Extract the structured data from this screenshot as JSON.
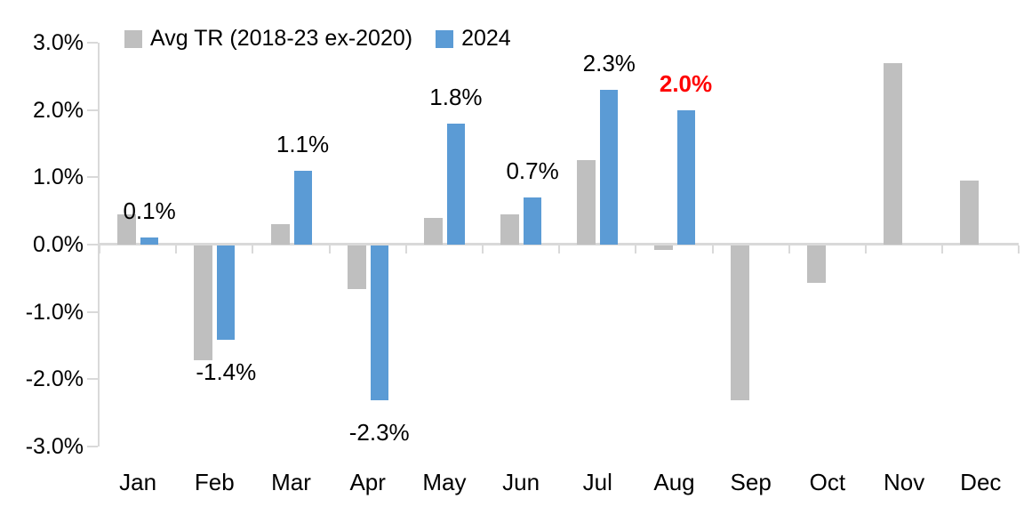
{
  "legend": {
    "series1_label": "Avg TR (2018-23 ex-2020)",
    "series2_label": "2024"
  },
  "colors": {
    "avg_series": "#BFBFBF",
    "cur_series": "#5B9BD5",
    "axis": "#D9D9D9",
    "label_default": "#000000",
    "label_highlight": "#FF0000"
  },
  "chart_data": {
    "type": "bar",
    "categories": [
      "Jan",
      "Feb",
      "Mar",
      "Apr",
      "May",
      "Jun",
      "Jul",
      "Aug",
      "Sep",
      "Oct",
      "Nov",
      "Dec"
    ],
    "series": [
      {
        "name": "Avg TR (2018-23 ex-2020)",
        "color_key": "avg_series",
        "values": [
          0.45,
          -1.7,
          0.3,
          -0.65,
          0.4,
          0.45,
          1.25,
          -0.07,
          -2.3,
          -0.55,
          2.7,
          0.95
        ]
      },
      {
        "name": "2024",
        "color_key": "cur_series",
        "values": [
          0.1,
          -1.4,
          1.1,
          -2.3,
          1.8,
          0.7,
          2.3,
          2.0,
          null,
          null,
          null,
          null
        ]
      }
    ],
    "data_labels": [
      {
        "category": "Jan",
        "text": "0.1%",
        "value": 0.1,
        "highlight": false
      },
      {
        "category": "Feb",
        "text": "-1.4%",
        "value": -1.4,
        "highlight": false
      },
      {
        "category": "Mar",
        "text": "1.1%",
        "value": 1.1,
        "highlight": false
      },
      {
        "category": "Apr",
        "text": "-2.3%",
        "value": -2.3,
        "highlight": false
      },
      {
        "category": "May",
        "text": "1.8%",
        "value": 1.8,
        "highlight": false
      },
      {
        "category": "Jun",
        "text": "0.7%",
        "value": 0.7,
        "highlight": false
      },
      {
        "category": "Jul",
        "text": "2.3%",
        "value": 2.3,
        "highlight": false
      },
      {
        "category": "Aug",
        "text": "2.0%",
        "value": 2.0,
        "highlight": true
      }
    ],
    "y_ticks": [
      {
        "label": "3.0%",
        "value": 3
      },
      {
        "label": "2.0%",
        "value": 2
      },
      {
        "label": "1.0%",
        "value": 1
      },
      {
        "label": "0.0%",
        "value": 0
      },
      {
        "label": "-1.0%",
        "value": -1
      },
      {
        "label": "-2.0%",
        "value": -2
      },
      {
        "label": "-3.0%",
        "value": -3
      }
    ],
    "ylim": [
      -3,
      3
    ],
    "xlabel": "",
    "ylabel": "",
    "title": "",
    "grid": false,
    "legend_position": "top"
  }
}
